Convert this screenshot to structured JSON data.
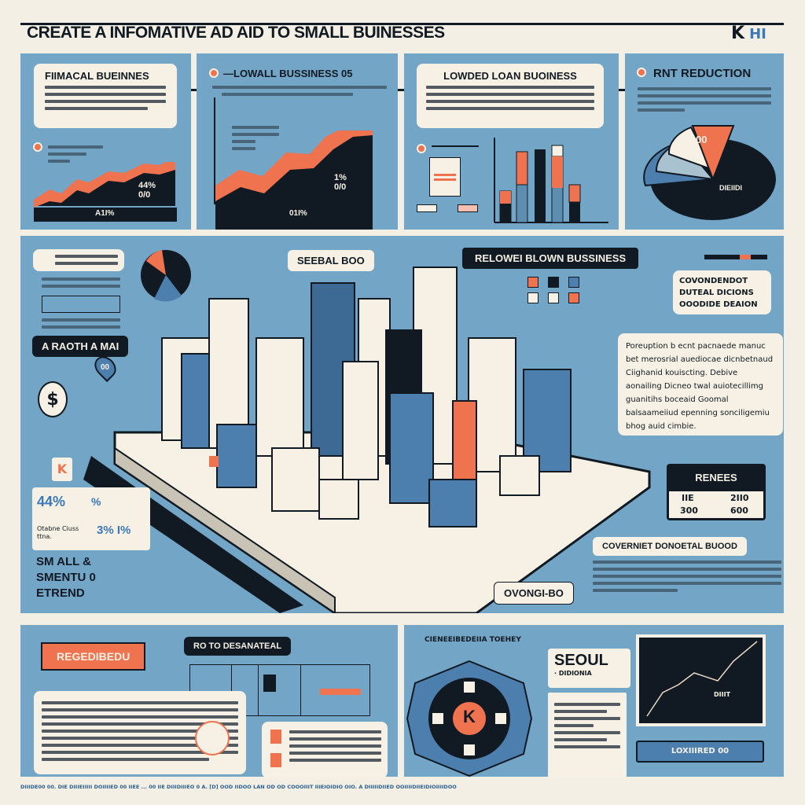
{
  "header": {
    "title": "CREATE A INFOMATIVE AD  AID TO  SMALL BUINESSES",
    "logo_text": "K",
    "logo_glyph": "HI"
  },
  "colors": {
    "background": "#f3efe4",
    "panel": "#72a5c6",
    "dark": "#111a22",
    "accent": "#f07350",
    "cream": "#f6f1e4"
  },
  "top_panels": [
    {
      "title": "FIIMACAL BUEINNES",
      "chart_label": "44%\n0/0",
      "axis_label": "A1I%"
    },
    {
      "title": "—LOWALL BUSSINESS 05",
      "chart_label": "1%\n0/0",
      "axis_label": "01I%"
    },
    {
      "title": "LOWDED LOAN BUOINESS"
    },
    {
      "title": "RNT REDUCTION",
      "slice_label": "00",
      "pie_label": "DIEIIDI"
    }
  ],
  "middle": {
    "seoul_tag": "SEEBAL BOO",
    "blown_tag": "RELOWEI BLOWN BUSSINESS",
    "gov_box": [
      "COVONDENDOT",
      "DUTEAL DICIONS",
      "OOODIDE DEAION"
    ],
    "description": "Poreuption b ecnt pacnaede manuc bet merosrial auediocae dicnbetnaud Ciighanid kouiscting. Debive aonailing Dicneo twal auiotecillimg guanitihs boceaid Goomal balsaameiiud epenning sonciligemiu bhog auid cimbie.",
    "left_tag": "A RAOTH A MAI",
    "pin_label": "00",
    "k_badge": "K",
    "stat_1": "44%",
    "stat_1_suffix": "%",
    "stat_2_label": "Otabne Ciuss ttna.",
    "stat_2": "3% I%",
    "trend_text": [
      "SM ALL &",
      "SMENTU 0",
      "ETREND"
    ],
    "renees": {
      "title": "RENEES",
      "headers": [
        "IIE",
        "2II0"
      ],
      "values": [
        "300",
        "600"
      ]
    },
    "gov_title": "COVERNIET DONOETAL BUOOD",
    "ovongi_tag": "OVONGI-BO"
  },
  "bottom_left": {
    "tag_orange": "REGEDIBEDU",
    "tag_dark": "RO TO DESANATEAL"
  },
  "bottom_right": {
    "caption": "CIENEEIBEDEIIA TOEHEY",
    "seoul_title": "SEOUL",
    "seoul_sub": "· DIDIONIA",
    "k_emblem": "K",
    "map_label": "DIIIT",
    "button_label": "LOXIIIRED 00"
  },
  "footer": "DIIIDE00 00. DIE DIIIEIIIII DOIIIIED 00 IIEE ... 00 IIE DIIIDIIIEO 0 A. [D] OOD IIDOO LAN OD OD COOOIIIT IIIEIOIDIO OIO. A DIIIIIDIIED OOIIIIDIIEIDIOIIIIDOO"
}
